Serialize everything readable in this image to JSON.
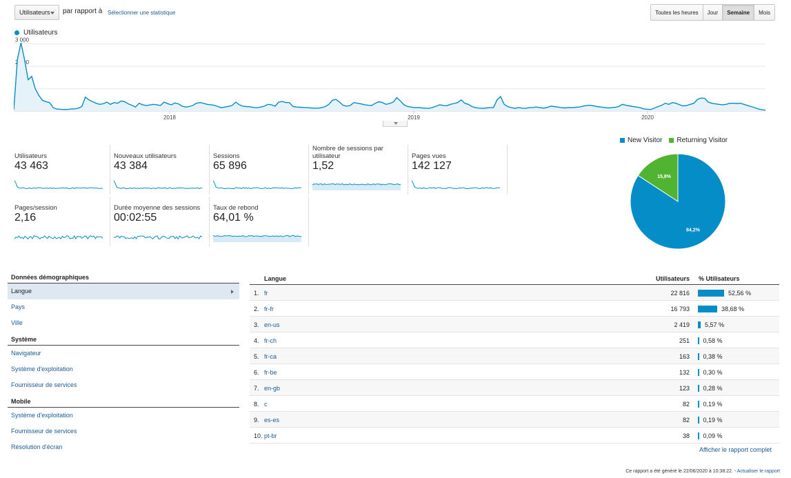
{
  "toolbar": {
    "metric_select": "Utilisateurs",
    "compare_label": "par rapport à",
    "select_stat_link": "Sélectionner une statistique",
    "granularity": [
      "Toutes les heures",
      "Jour",
      "Semaine",
      "Mois"
    ],
    "active_granularity": "Semaine"
  },
  "chart_data": [
    {
      "type": "area",
      "series": [
        {
          "name": "Utilisateurs",
          "color": "#058dc7",
          "values": [
            60,
            2300,
            3050,
            2300,
            1400,
            1550,
            1000,
            700,
            480,
            420,
            380,
            150,
            90,
            80,
            70,
            70,
            90,
            100,
            130,
            200,
            620,
            500,
            420,
            350,
            300,
            330,
            400,
            300,
            380,
            350,
            450,
            420,
            320,
            260,
            180,
            350,
            280,
            250,
            270,
            300,
            280,
            250,
            400,
            330,
            280,
            360,
            320,
            220,
            180,
            200,
            250,
            350,
            380,
            350,
            300,
            280,
            260,
            200,
            150,
            180,
            210,
            250,
            400,
            280,
            220,
            200,
            190,
            160,
            150,
            180,
            220,
            300,
            280,
            220,
            400,
            430,
            380,
            380,
            200,
            180,
            170,
            160,
            150,
            140,
            130,
            130,
            150,
            200,
            300,
            480,
            520,
            400,
            260,
            220,
            250,
            380,
            350,
            320,
            280,
            260,
            250,
            350,
            420,
            380,
            300,
            340,
            400,
            600,
            450,
            280,
            200,
            180,
            150,
            160,
            140,
            130,
            120,
            160,
            220,
            280,
            250,
            240,
            300,
            340,
            380,
            500,
            350,
            300,
            200,
            150,
            130,
            120,
            140,
            150,
            150,
            500,
            650,
            300,
            200,
            150,
            120,
            160,
            130,
            120,
            150,
            160,
            180,
            150,
            130,
            160,
            220,
            200,
            180,
            150,
            140,
            160,
            150,
            170,
            180,
            220,
            250,
            260,
            230,
            200,
            180,
            160,
            140,
            150,
            170,
            200,
            300,
            260,
            230,
            200,
            180,
            150,
            100,
            80,
            70,
            140,
            200,
            260,
            350,
            300,
            380,
            350,
            280,
            230,
            250,
            300,
            350,
            520,
            580,
            570,
            400,
            350,
            320,
            300,
            280,
            300,
            350,
            350,
            340,
            350,
            300,
            250,
            200,
            150,
            90,
            60,
            40
          ]
        }
      ],
      "x_tick_labels": [
        "2018",
        "2019",
        "2020"
      ],
      "y_tick_labels": [
        "1 000",
        "2 000",
        "3 000"
      ],
      "ylim": [
        0,
        3300
      ]
    },
    {
      "type": "pie",
      "series": [
        {
          "name": "New Visitor",
          "value": 84.2,
          "label": "84,2%",
          "color": "#058dc7"
        },
        {
          "name": "Returning Visitor",
          "value": 15.8,
          "label": "15,8%",
          "color": "#50b432"
        }
      ]
    }
  ],
  "kpis": [
    {
      "label": "Utilisateurs",
      "value": "43 463",
      "trend": "spike"
    },
    {
      "label": "Nouveaux utilisateurs",
      "value": "43 384",
      "trend": "spike"
    },
    {
      "label": "Sessions",
      "value": "65 896",
      "trend": "spike"
    },
    {
      "label": "Nombre de sessions par utilisateur",
      "value": "1,52",
      "trend": "flat"
    },
    {
      "label": "Pages vues",
      "value": "142 127",
      "trend": "spike"
    },
    {
      "label": "Pages/session",
      "value": "2,16",
      "trend": "noisy"
    },
    {
      "label": "Durée moyenne des sessions",
      "value": "00:02:55",
      "trend": "noisy"
    },
    {
      "label": "Taux de rebond",
      "value": "64,01 %",
      "trend": "flat"
    }
  ],
  "left_nav": {
    "sections": [
      {
        "title": "Données démographiques",
        "items": [
          "Langue",
          "Pays",
          "Ville"
        ]
      },
      {
        "title": "Système",
        "items": [
          "Navigateur",
          "Système d'exploitation",
          "Fournisseur de services"
        ]
      },
      {
        "title": "Mobile",
        "items": [
          "Système d'exploitation",
          "Fournisseur de services",
          "Résolution d'écran"
        ]
      }
    ],
    "selected": "Langue"
  },
  "table": {
    "headers": {
      "lang": "Langue",
      "users": "Utilisateurs",
      "pct": "% Utilisateurs"
    },
    "rows": [
      {
        "idx": "1.",
        "lang": "fr",
        "users": "22 816",
        "pct": "52,56 %",
        "pct_value": 52.56
      },
      {
        "idx": "2.",
        "lang": "fr-fr",
        "users": "16 793",
        "pct": "38,68 %",
        "pct_value": 38.68
      },
      {
        "idx": "3.",
        "lang": "en-us",
        "users": "2 419",
        "pct": "5,57 %",
        "pct_value": 5.57
      },
      {
        "idx": "4.",
        "lang": "fr-ch",
        "users": "251",
        "pct": "0,58 %",
        "pct_value": 0.58
      },
      {
        "idx": "5.",
        "lang": "fr-ca",
        "users": "163",
        "pct": "0,38 %",
        "pct_value": 0.38
      },
      {
        "idx": "6.",
        "lang": "fr-be",
        "users": "132",
        "pct": "0,30 %",
        "pct_value": 0.3
      },
      {
        "idx": "7.",
        "lang": "en-gb",
        "users": "123",
        "pct": "0,28 %",
        "pct_value": 0.28
      },
      {
        "idx": "8.",
        "lang": "c",
        "users": "82",
        "pct": "0,19 %",
        "pct_value": 0.19
      },
      {
        "idx": "9.",
        "lang": "es-es",
        "users": "82",
        "pct": "0,19 %",
        "pct_value": 0.19
      },
      {
        "idx": "10.",
        "lang": "pt-br",
        "users": "38",
        "pct": "0,09 %",
        "pct_value": 0.09
      }
    ],
    "full_report_link": "Afficher le rapport complet"
  },
  "footer": {
    "generated_text": "Ce rapport a été généré le 22/06/2020 à 10:38:22. -",
    "refresh_link": "Actualiser le rapport"
  },
  "colors": {
    "primary": "#058dc7",
    "secondary": "#50b432",
    "link": "#1a5a96"
  }
}
